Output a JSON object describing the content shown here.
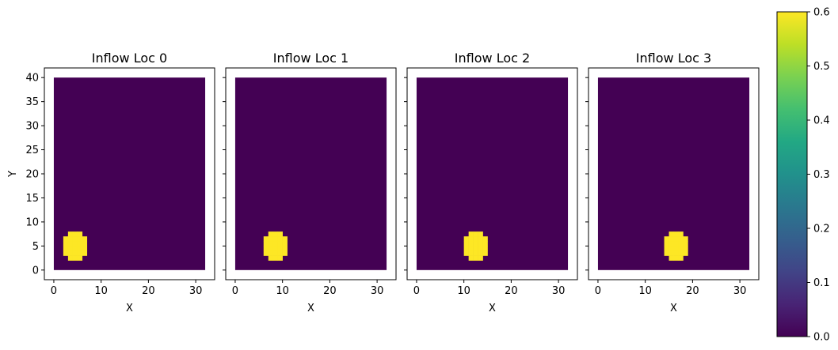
{
  "chart_data": {
    "type": "heatmap",
    "panels": [
      {
        "title": "Inflow Loc 0",
        "xlabel": "X",
        "ylabel": "Y",
        "blob_center": [
          4.5,
          5
        ]
      },
      {
        "title": "Inflow Loc 1",
        "xlabel": "X",
        "ylabel": "",
        "blob_center": [
          8.5,
          5
        ]
      },
      {
        "title": "Inflow Loc 2",
        "xlabel": "X",
        "ylabel": "",
        "blob_center": [
          12.5,
          5
        ]
      },
      {
        "title": "Inflow Loc 3",
        "xlabel": "X",
        "ylabel": "",
        "blob_center": [
          16.5,
          5
        ]
      }
    ],
    "grid": {
      "nx": 32,
      "ny": 40
    },
    "blob_radius": 3,
    "xlim": [
      -2,
      34
    ],
    "ylim": [
      -2,
      42
    ],
    "xticks": [
      0,
      10,
      20,
      30
    ],
    "yticks": [
      0,
      5,
      10,
      15,
      20,
      25,
      30,
      35,
      40
    ],
    "background_value": 0.0,
    "blob_value": 0.6,
    "colormap": "viridis",
    "colorbar": {
      "min": 0.0,
      "max": 0.6,
      "ticks": [
        "0.0",
        "0.1",
        "0.2",
        "0.3",
        "0.4",
        "0.5",
        "0.6"
      ]
    },
    "colors": {
      "low": "#440154",
      "high": "#fde725"
    }
  }
}
